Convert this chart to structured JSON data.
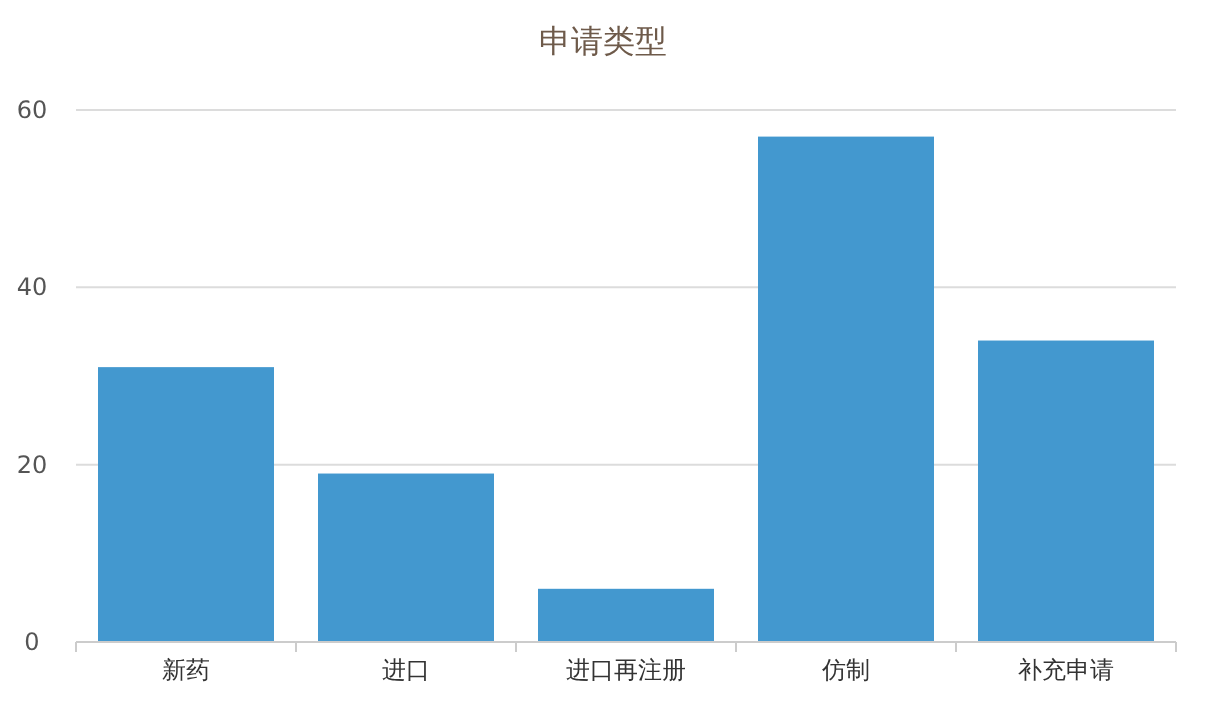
{
  "chart_data": {
    "type": "bar",
    "title": "申请类型",
    "categories": [
      "新药",
      "进口",
      "进口再注册",
      "仿制",
      "补充申请"
    ],
    "values": [
      31,
      19,
      6,
      57,
      34
    ],
    "color": "#4398cf",
    "ylim": [
      0,
      60
    ],
    "yticks": [
      0,
      20,
      40,
      60
    ],
    "grid": "y"
  }
}
